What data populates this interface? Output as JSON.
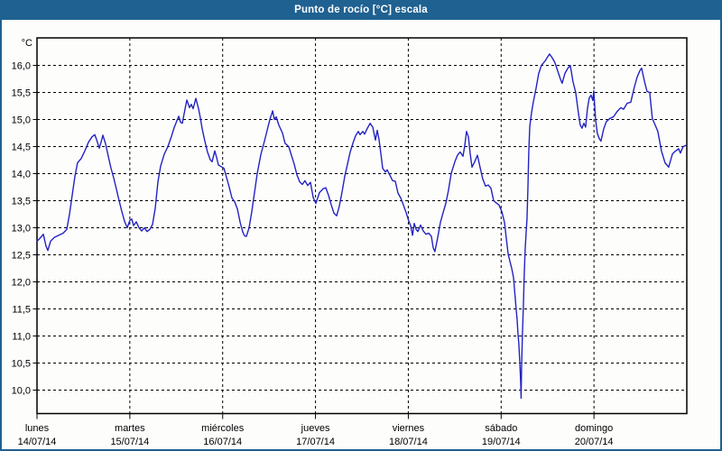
{
  "window": {
    "title": "Punto de rocío [°C] escala",
    "title_bar_color": "#1f6191",
    "frame_color": "#1f6191",
    "background": "#fdfdfc"
  },
  "chart_data": {
    "type": "line",
    "title": "Punto de rocío [°C] escala",
    "unit_label": "°C",
    "line_color": "#2323c3",
    "grid": "dashed black, horizontal every 0.5 °C and vertical at day boundaries",
    "legend": "none",
    "ylim": [
      9.57,
      16.5
    ],
    "xlim_days": [
      0,
      7
    ],
    "y_ticks": [
      {
        "value": 16.0,
        "label": "16,0"
      },
      {
        "value": 15.5,
        "label": "15,5"
      },
      {
        "value": 15.0,
        "label": "15,0"
      },
      {
        "value": 14.5,
        "label": "14,5"
      },
      {
        "value": 14.0,
        "label": "14,0"
      },
      {
        "value": 13.5,
        "label": "13,5"
      },
      {
        "value": 13.0,
        "label": "13,0"
      },
      {
        "value": 12.5,
        "label": "12,5"
      },
      {
        "value": 12.0,
        "label": "12,0"
      },
      {
        "value": 11.5,
        "label": "11,5"
      },
      {
        "value": 11.0,
        "label": "11,0"
      },
      {
        "value": 10.5,
        "label": "10,5"
      },
      {
        "value": 10.0,
        "label": "10,0"
      }
    ],
    "x_days": [
      {
        "name": "lunes",
        "date": "14/07/14"
      },
      {
        "name": "martes",
        "date": "15/07/14"
      },
      {
        "name": "miércoles",
        "date": "16/07/14"
      },
      {
        "name": "jueves",
        "date": "17/07/14"
      },
      {
        "name": "viernes",
        "date": "18/07/14"
      },
      {
        "name": "sábado",
        "date": "19/07/14"
      },
      {
        "name": "domingo",
        "date": "20/07/14"
      }
    ],
    "series": [
      {
        "name": "Punto de rocío",
        "color": "#2323c3",
        "points": [
          [
            0.0,
            12.75
          ],
          [
            0.029,
            12.8
          ],
          [
            0.068,
            12.88
          ],
          [
            0.097,
            12.66
          ],
          [
            0.117,
            12.58
          ],
          [
            0.146,
            12.75
          ],
          [
            0.185,
            12.82
          ],
          [
            0.233,
            12.86
          ],
          [
            0.282,
            12.9
          ],
          [
            0.321,
            12.97
          ],
          [
            0.35,
            13.25
          ],
          [
            0.379,
            13.6
          ],
          [
            0.408,
            13.95
          ],
          [
            0.437,
            14.2
          ],
          [
            0.476,
            14.28
          ],
          [
            0.515,
            14.42
          ],
          [
            0.554,
            14.58
          ],
          [
            0.593,
            14.68
          ],
          [
            0.622,
            14.72
          ],
          [
            0.642,
            14.63
          ],
          [
            0.671,
            14.47
          ],
          [
            0.69,
            14.58
          ],
          [
            0.71,
            14.71
          ],
          [
            0.739,
            14.55
          ],
          [
            0.768,
            14.32
          ],
          [
            0.797,
            14.1
          ],
          [
            0.826,
            13.92
          ],
          [
            0.855,
            13.72
          ],
          [
            0.885,
            13.5
          ],
          [
            0.914,
            13.3
          ],
          [
            0.943,
            13.12
          ],
          [
            0.972,
            13.0
          ],
          [
            1.001,
            13.14
          ],
          [
            1.021,
            13.16
          ],
          [
            1.04,
            13.04
          ],
          [
            1.069,
            13.11
          ],
          [
            1.099,
            13.0
          ],
          [
            1.128,
            12.94
          ],
          [
            1.157,
            13.0
          ],
          [
            1.186,
            12.93
          ],
          [
            1.215,
            12.97
          ],
          [
            1.244,
            13.06
          ],
          [
            1.274,
            13.36
          ],
          [
            1.303,
            13.85
          ],
          [
            1.332,
            14.14
          ],
          [
            1.371,
            14.36
          ],
          [
            1.41,
            14.5
          ],
          [
            1.449,
            14.69
          ],
          [
            1.478,
            14.85
          ],
          [
            1.507,
            14.98
          ],
          [
            1.527,
            15.06
          ],
          [
            1.546,
            14.95
          ],
          [
            1.565,
            14.93
          ],
          [
            1.595,
            15.2
          ],
          [
            1.614,
            15.36
          ],
          [
            1.643,
            15.22
          ],
          [
            1.662,
            15.28
          ],
          [
            1.682,
            15.2
          ],
          [
            1.711,
            15.39
          ],
          [
            1.74,
            15.2
          ],
          [
            1.76,
            15.03
          ],
          [
            1.779,
            14.83
          ],
          [
            1.808,
            14.6
          ],
          [
            1.837,
            14.4
          ],
          [
            1.866,
            14.26
          ],
          [
            1.886,
            14.22
          ],
          [
            1.915,
            14.42
          ],
          [
            1.935,
            14.3
          ],
          [
            1.954,
            14.16
          ],
          [
            1.983,
            14.13
          ],
          [
            2.013,
            14.1
          ],
          [
            2.042,
            13.93
          ],
          [
            2.071,
            13.75
          ],
          [
            2.1,
            13.55
          ],
          [
            2.129,
            13.48
          ],
          [
            2.158,
            13.35
          ],
          [
            2.188,
            13.1
          ],
          [
            2.217,
            12.92
          ],
          [
            2.236,
            12.85
          ],
          [
            2.256,
            12.84
          ],
          [
            2.285,
            13.0
          ],
          [
            2.314,
            13.3
          ],
          [
            2.343,
            13.65
          ],
          [
            2.372,
            14.0
          ],
          [
            2.411,
            14.35
          ],
          [
            2.45,
            14.6
          ],
          [
            2.479,
            14.8
          ],
          [
            2.508,
            15.0
          ],
          [
            2.538,
            15.16
          ],
          [
            2.557,
            15.0
          ],
          [
            2.576,
            15.05
          ],
          [
            2.605,
            14.9
          ],
          [
            2.644,
            14.75
          ],
          [
            2.673,
            14.56
          ],
          [
            2.712,
            14.5
          ],
          [
            2.741,
            14.34
          ],
          [
            2.77,
            14.18
          ],
          [
            2.8,
            13.98
          ],
          [
            2.829,
            13.85
          ],
          [
            2.858,
            13.8
          ],
          [
            2.887,
            13.87
          ],
          [
            2.916,
            13.78
          ],
          [
            2.946,
            13.84
          ],
          [
            2.975,
            13.56
          ],
          [
            3.004,
            13.45
          ],
          [
            3.043,
            13.65
          ],
          [
            3.082,
            13.72
          ],
          [
            3.111,
            13.74
          ],
          [
            3.14,
            13.6
          ],
          [
            3.17,
            13.42
          ],
          [
            3.199,
            13.27
          ],
          [
            3.228,
            13.22
          ],
          [
            3.257,
            13.4
          ],
          [
            3.286,
            13.66
          ],
          [
            3.315,
            13.95
          ],
          [
            3.345,
            14.18
          ],
          [
            3.374,
            14.4
          ],
          [
            3.403,
            14.56
          ],
          [
            3.432,
            14.7
          ],
          [
            3.461,
            14.78
          ],
          [
            3.481,
            14.72
          ],
          [
            3.51,
            14.78
          ],
          [
            3.529,
            14.73
          ],
          [
            3.559,
            14.84
          ],
          [
            3.588,
            14.93
          ],
          [
            3.617,
            14.86
          ],
          [
            3.646,
            14.62
          ],
          [
            3.665,
            14.8
          ],
          [
            3.685,
            14.63
          ],
          [
            3.704,
            14.37
          ],
          [
            3.724,
            14.1
          ],
          [
            3.753,
            14.03
          ],
          [
            3.772,
            14.07
          ],
          [
            3.801,
            13.97
          ],
          [
            3.831,
            13.87
          ],
          [
            3.86,
            13.86
          ],
          [
            3.889,
            13.64
          ],
          [
            3.918,
            13.55
          ],
          [
            3.947,
            13.42
          ],
          [
            3.976,
            13.28
          ],
          [
            4.006,
            13.12
          ],
          [
            4.025,
            13.04
          ],
          [
            4.045,
            12.86
          ],
          [
            4.064,
            13.08
          ],
          [
            4.084,
            12.97
          ],
          [
            4.103,
            12.93
          ],
          [
            4.132,
            13.05
          ],
          [
            4.161,
            12.94
          ],
          [
            4.19,
            12.88
          ],
          [
            4.219,
            12.9
          ],
          [
            4.249,
            12.84
          ],
          [
            4.268,
            12.63
          ],
          [
            4.287,
            12.56
          ],
          [
            4.317,
            12.82
          ],
          [
            4.346,
            13.1
          ],
          [
            4.375,
            13.28
          ],
          [
            4.404,
            13.45
          ],
          [
            4.433,
            13.7
          ],
          [
            4.462,
            14.0
          ],
          [
            4.501,
            14.22
          ],
          [
            4.53,
            14.34
          ],
          [
            4.559,
            14.4
          ],
          [
            4.589,
            14.32
          ],
          [
            4.608,
            14.52
          ],
          [
            4.627,
            14.78
          ],
          [
            4.647,
            14.68
          ],
          [
            4.666,
            14.38
          ],
          [
            4.686,
            14.12
          ],
          [
            4.715,
            14.22
          ],
          [
            4.744,
            14.34
          ],
          [
            4.773,
            14.12
          ],
          [
            4.802,
            13.9
          ],
          [
            4.832,
            13.77
          ],
          [
            4.861,
            13.79
          ],
          [
            4.89,
            13.73
          ],
          [
            4.919,
            13.5
          ],
          [
            4.948,
            13.46
          ],
          [
            4.977,
            13.42
          ],
          [
            5.007,
            13.3
          ],
          [
            5.036,
            13.1
          ],
          [
            5.055,
            12.82
          ],
          [
            5.075,
            12.52
          ],
          [
            5.094,
            12.38
          ],
          [
            5.114,
            12.25
          ],
          [
            5.133,
            12.08
          ],
          [
            5.152,
            11.7
          ],
          [
            5.162,
            11.5
          ],
          [
            5.172,
            11.3
          ],
          [
            5.181,
            11.05
          ],
          [
            5.191,
            10.85
          ],
          [
            5.201,
            10.5
          ],
          [
            5.211,
            10.12
          ],
          [
            5.215,
            9.85
          ],
          [
            5.22,
            10.4
          ],
          [
            5.23,
            11.05
          ],
          [
            5.24,
            11.6
          ],
          [
            5.249,
            12.15
          ],
          [
            5.259,
            12.6
          ],
          [
            5.269,
            12.92
          ],
          [
            5.278,
            13.15
          ],
          [
            5.288,
            13.7
          ],
          [
            5.298,
            14.4
          ],
          [
            5.308,
            14.87
          ],
          [
            5.327,
            15.12
          ],
          [
            5.346,
            15.32
          ],
          [
            5.376,
            15.58
          ],
          [
            5.405,
            15.85
          ],
          [
            5.434,
            16.0
          ],
          [
            5.473,
            16.08
          ],
          [
            5.502,
            16.16
          ],
          [
            5.521,
            16.21
          ],
          [
            5.55,
            16.14
          ],
          [
            5.58,
            16.05
          ],
          [
            5.609,
            15.9
          ],
          [
            5.638,
            15.75
          ],
          [
            5.657,
            15.67
          ],
          [
            5.687,
            15.85
          ],
          [
            5.716,
            15.94
          ],
          [
            5.745,
            16.0
          ],
          [
            5.774,
            15.7
          ],
          [
            5.803,
            15.5
          ],
          [
            5.832,
            15.12
          ],
          [
            5.852,
            14.9
          ],
          [
            5.871,
            14.84
          ],
          [
            5.891,
            14.93
          ],
          [
            5.91,
            14.86
          ],
          [
            5.93,
            15.2
          ],
          [
            5.949,
            15.4
          ],
          [
            5.968,
            15.45
          ],
          [
            5.988,
            15.35
          ],
          [
            5.998,
            15.53
          ],
          [
            6.017,
            15.0
          ],
          [
            6.036,
            14.75
          ],
          [
            6.056,
            14.65
          ],
          [
            6.075,
            14.6
          ],
          [
            6.104,
            14.82
          ],
          [
            6.133,
            14.96
          ],
          [
            6.172,
            15.02
          ],
          [
            6.211,
            15.05
          ],
          [
            6.25,
            15.15
          ],
          [
            6.289,
            15.22
          ],
          [
            6.318,
            15.19
          ],
          [
            6.357,
            15.3
          ],
          [
            6.396,
            15.32
          ],
          [
            6.435,
            15.6
          ],
          [
            6.464,
            15.78
          ],
          [
            6.493,
            15.9
          ],
          [
            6.513,
            15.95
          ],
          [
            6.542,
            15.72
          ],
          [
            6.571,
            15.52
          ],
          [
            6.6,
            15.5
          ],
          [
            6.629,
            15.02
          ],
          [
            6.659,
            14.9
          ],
          [
            6.688,
            14.78
          ],
          [
            6.727,
            14.42
          ],
          [
            6.766,
            14.2
          ],
          [
            6.805,
            14.12
          ],
          [
            6.844,
            14.36
          ],
          [
            6.873,
            14.41
          ],
          [
            6.912,
            14.46
          ],
          [
            6.931,
            14.38
          ],
          [
            6.961,
            14.5
          ],
          [
            6.99,
            14.52
          ]
        ]
      }
    ]
  }
}
